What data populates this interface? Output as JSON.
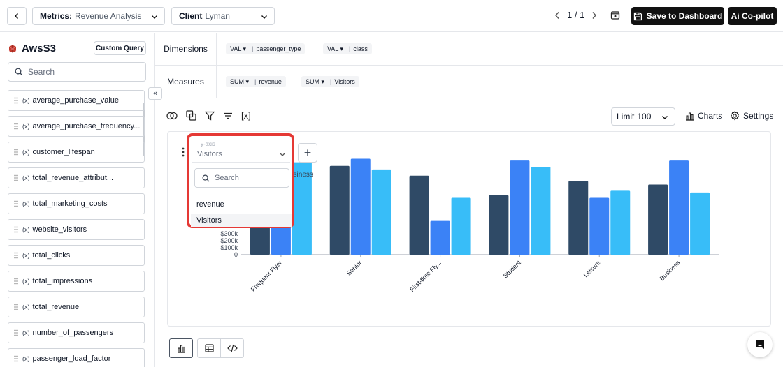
{
  "topbar": {
    "metrics_label": "Metrics:",
    "metrics_value": "Revenue Analysis",
    "client_label": "Client",
    "client_value": "Lyman",
    "page_indicator": "1 / 1",
    "save_label": "Save to Dashboard",
    "copilot_label": "Ai Co-pilot"
  },
  "sidebar": {
    "source_name": "AwsS3",
    "custom_query_label": "Custom Query",
    "search_placeholder": "Search",
    "fields": [
      "average_purchase_value",
      "average_purchase_frequency...",
      "customer_lifespan",
      "total_revenue_attribut...",
      "total_marketing_costs",
      "website_visitors",
      "total_clicks",
      "total_impressions",
      "total_revenue",
      "number_of_passengers",
      "passenger_load_factor"
    ],
    "fx_symbol": "(x)",
    "collapse_symbol": "«"
  },
  "dimensions": {
    "label": "Dimensions",
    "chips": [
      {
        "agg": "VAL ▾",
        "field": "passenger_type"
      },
      {
        "agg": "VAL ▾",
        "field": "class"
      }
    ]
  },
  "measures": {
    "label": "Measures",
    "chips": [
      {
        "agg": "SUM ▾",
        "field": "revenue"
      },
      {
        "agg": "SUM ▾",
        "field": "Visitors"
      }
    ]
  },
  "toolbar": {
    "variable_symbol": "[x]",
    "limit_label": "Limit",
    "limit_value": "100",
    "charts_label": "Charts",
    "settings_label": "Settings"
  },
  "dropdown": {
    "field_label": "y-axis",
    "selected": "Visitors",
    "search_placeholder": "Search",
    "options": [
      "revenue",
      "Visitors"
    ]
  },
  "chart_data": {
    "type": "bar",
    "legend_fragment": "usiness",
    "categories": [
      "Frequent Flyer",
      "Senior",
      "First-time Fly...",
      "Student",
      "Leisure",
      "Business"
    ],
    "y_ticks": [
      "$300k",
      "$200k",
      "$100k",
      "0"
    ],
    "ylim": [
      0,
      550
    ],
    "series": [
      {
        "color": "#2f4a66",
        "values": [
          240,
          500,
          445,
          335,
          415,
          395
        ]
      },
      {
        "color": "#3b82f6",
        "values": [
          385,
          540,
          190,
          530,
          320,
          530
        ]
      },
      {
        "color": "#38bdf8",
        "values": [
          520,
          480,
          320,
          495,
          360,
          350
        ]
      }
    ]
  },
  "colors": {
    "accent": "#e53935",
    "dark": "#111111"
  }
}
